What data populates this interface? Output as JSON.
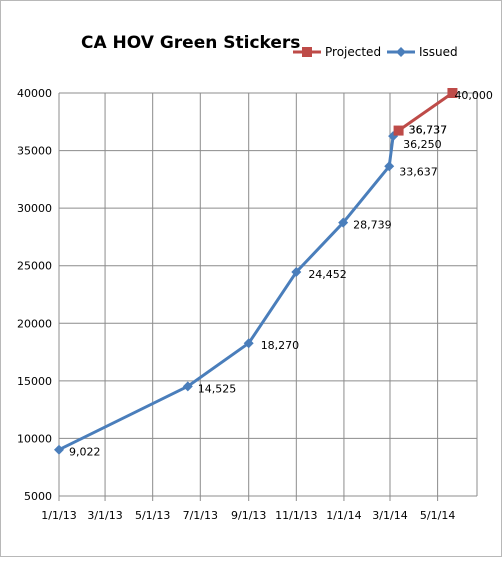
{
  "chart_data": {
    "type": "line",
    "title": "CA HOV Green Stickers",
    "xlabel": "",
    "ylabel": "",
    "x_ticks": [
      "1/1/13",
      "3/1/13",
      "5/1/13",
      "7/1/13",
      "9/1/13",
      "11/1/13",
      "1/1/14",
      "3/1/14",
      "5/1/14"
    ],
    "ylim": [
      5000,
      40000
    ],
    "y_ticks": [
      "5000",
      "10000",
      "15000",
      "20000",
      "25000",
      "30000",
      "35000",
      "40000"
    ],
    "grid": "vertical and horizontal",
    "legend_position": "top-right",
    "series": [
      {
        "name": "Issued",
        "color": "#4A7EBB",
        "marker": "diamond",
        "points": [
          {
            "x": "1/1/13",
            "y": 9022,
            "label": "9,022"
          },
          {
            "x": "6/15/13",
            "y": 14525,
            "label": "14,525"
          },
          {
            "x": "9/1/13",
            "y": 18270,
            "label": "18,270"
          },
          {
            "x": "11/1/13",
            "y": 24452,
            "label": "24,452"
          },
          {
            "x": "12/31/13",
            "y": 28739,
            "label": "28,739"
          },
          {
            "x": "2/28/14",
            "y": 33637,
            "label": "33,637"
          },
          {
            "x": "3/5/14",
            "y": 36250,
            "label": "36,250"
          },
          {
            "x": "3/12/14",
            "y": 36737,
            "label": "36,737"
          }
        ]
      },
      {
        "name": "Projected",
        "color": "#BE4B48",
        "marker": "square",
        "points": [
          {
            "x": "3/12/14",
            "y": 36737,
            "label": "36,737"
          },
          {
            "x": "5/20/14",
            "y": 40000,
            "label": "40,000"
          }
        ]
      }
    ]
  }
}
